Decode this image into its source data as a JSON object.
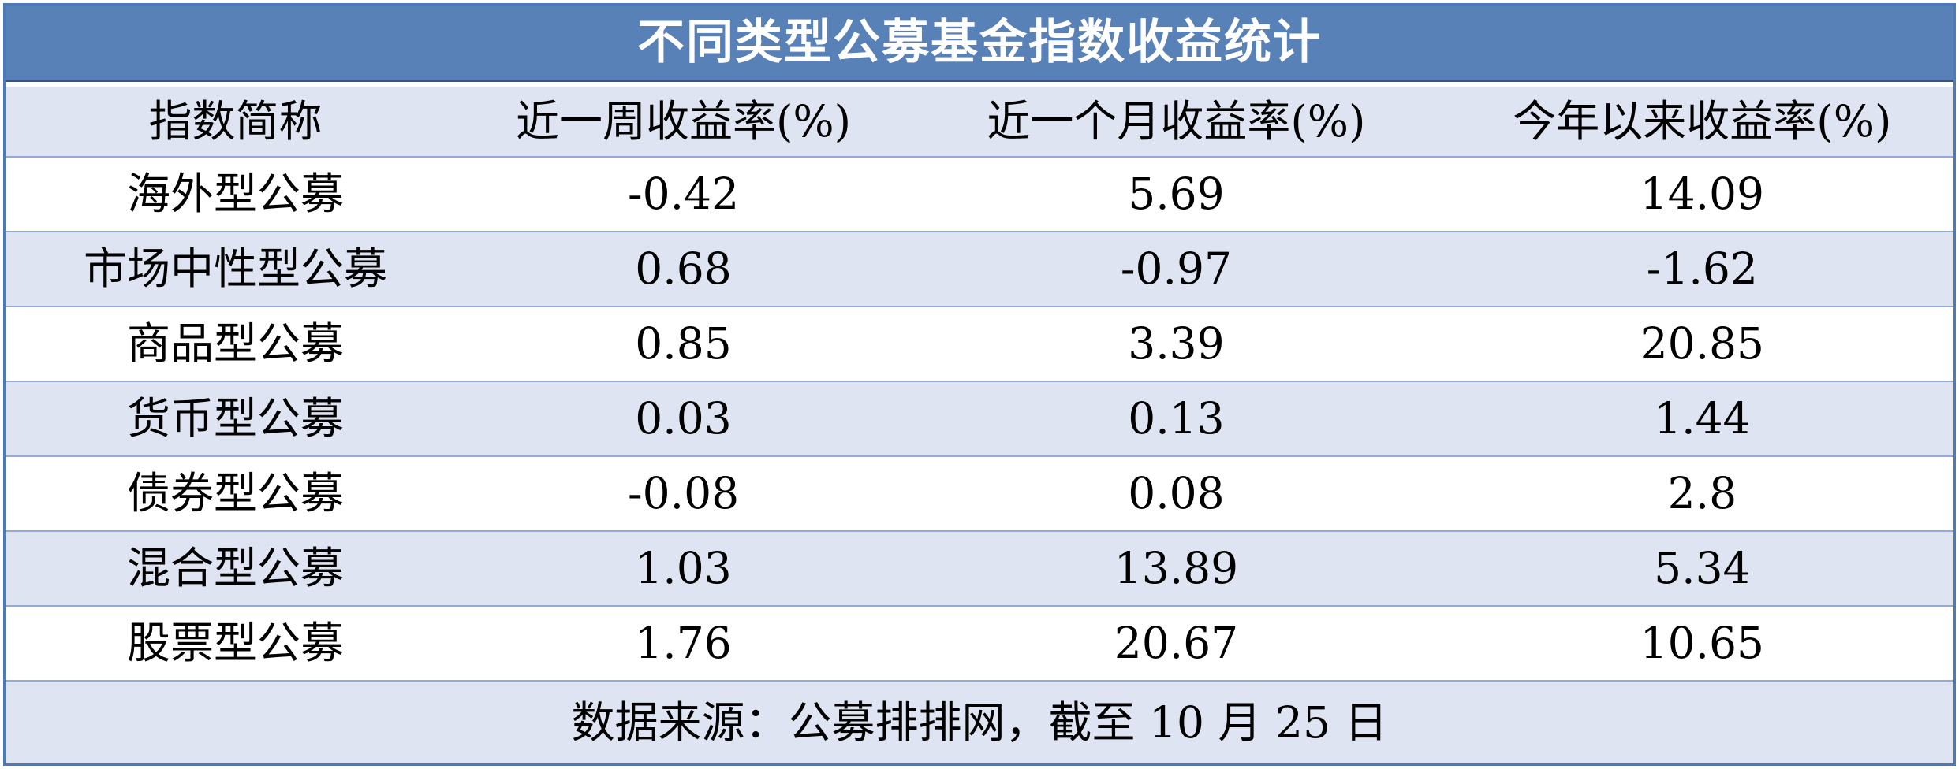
{
  "table": {
    "title": "不同类型公募基金指数收益统计",
    "columns": [
      "指数简称",
      "近一周收益率(%)",
      "近一个月收益率(%)",
      "今年以来收益率(%)"
    ],
    "rows": [
      {
        "cells": [
          "海外型公募",
          "-0.42",
          "5.69",
          "14.09"
        ]
      },
      {
        "cells": [
          "市场中性型公募",
          "0.68",
          "-0.97",
          "-1.62"
        ]
      },
      {
        "cells": [
          "商品型公募",
          "0.85",
          "3.39",
          "20.85"
        ]
      },
      {
        "cells": [
          "货币型公募",
          "0.03",
          "0.13",
          "1.44"
        ]
      },
      {
        "cells": [
          "债券型公募",
          "-0.08",
          "0.08",
          "2.8"
        ]
      },
      {
        "cells": [
          "混合型公募",
          "1.03",
          "13.89",
          "5.34"
        ]
      },
      {
        "cells": [
          "股票型公募",
          "1.76",
          "20.67",
          "10.65"
        ]
      }
    ],
    "footer": "数据来源：公募排排网，截至 10 月 25 日"
  },
  "colors": {
    "title_bar": "#5881B8",
    "title_text": "#FFFFFF",
    "title_edge": "#35548A",
    "tint_row": "#DEE4F1",
    "white_row": "#FFFFFF",
    "separator": "#93A9D6",
    "outer_border": "#4C79B7",
    "body_text": "#000000"
  },
  "chart_data": {
    "type": "table",
    "title": "不同类型公募基金指数收益统计",
    "columns": [
      "指数简称",
      "近一周收益率(%)",
      "近一个月收益率(%)",
      "今年以来收益率(%)"
    ],
    "rows": [
      [
        "海外型公募",
        -0.42,
        5.69,
        14.09
      ],
      [
        "市场中性型公募",
        0.68,
        -0.97,
        -1.62
      ],
      [
        "商品型公募",
        0.85,
        3.39,
        20.85
      ],
      [
        "货币型公募",
        0.03,
        0.13,
        1.44
      ],
      [
        "债券型公募",
        -0.08,
        0.08,
        2.8
      ],
      [
        "混合型公募",
        1.03,
        13.89,
        5.34
      ],
      [
        "股票型公募",
        1.76,
        20.67,
        10.65
      ]
    ],
    "source_note": "数据来源：公募排排网，截至 10 月 25 日"
  }
}
